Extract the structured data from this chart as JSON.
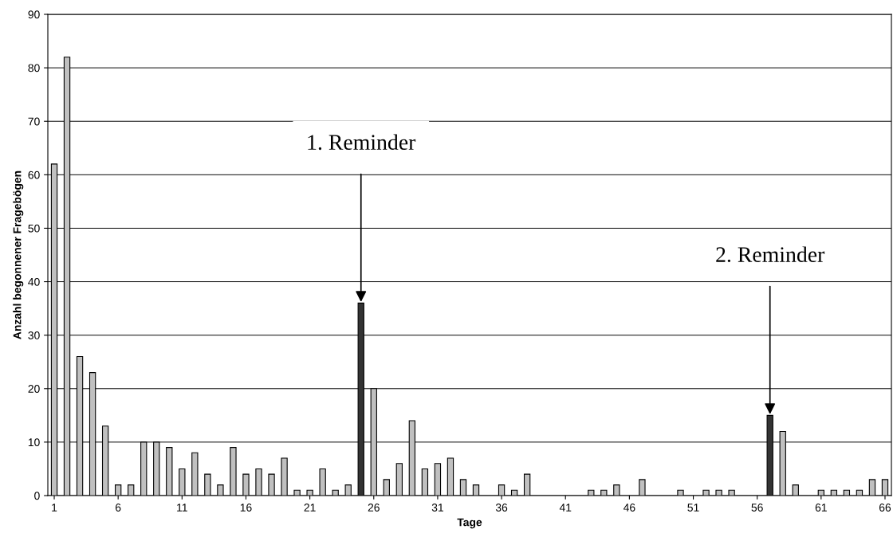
{
  "chart_data": {
    "type": "bar",
    "xlabel": "Tage",
    "ylabel": "Anzahl begonnener Fragebögen",
    "x": [
      1,
      2,
      3,
      4,
      5,
      6,
      7,
      8,
      9,
      10,
      11,
      12,
      13,
      14,
      15,
      16,
      17,
      18,
      19,
      20,
      21,
      22,
      23,
      24,
      25,
      26,
      27,
      28,
      29,
      30,
      31,
      32,
      33,
      34,
      35,
      36,
      37,
      38,
      39,
      40,
      41,
      42,
      43,
      44,
      45,
      46,
      47,
      48,
      49,
      50,
      51,
      52,
      53,
      54,
      55,
      56,
      57,
      58,
      59,
      60,
      61,
      62,
      63,
      64,
      65,
      66
    ],
    "values": [
      62,
      82,
      26,
      23,
      13,
      2,
      2,
      10,
      10,
      9,
      5,
      8,
      4,
      2,
      9,
      4,
      5,
      4,
      7,
      1,
      1,
      5,
      1,
      2,
      36,
      20,
      3,
      6,
      14,
      5,
      6,
      7,
      3,
      2,
      0,
      2,
      1,
      4,
      0,
      0,
      0,
      0,
      1,
      1,
      2,
      0,
      3,
      0,
      0,
      1,
      0,
      1,
      1,
      1,
      0,
      0,
      15,
      12,
      2,
      0,
      1,
      1,
      1,
      1,
      3,
      3
    ],
    "colors": [
      "#c0c0c0",
      "#c0c0c0",
      "#c0c0c0",
      "#c0c0c0",
      "#c0c0c0",
      "#c0c0c0",
      "#c0c0c0",
      "#c0c0c0",
      "#c0c0c0",
      "#c0c0c0",
      "#c0c0c0",
      "#c0c0c0",
      "#c0c0c0",
      "#c0c0c0",
      "#c0c0c0",
      "#c0c0c0",
      "#c0c0c0",
      "#c0c0c0",
      "#c0c0c0",
      "#c0c0c0",
      "#c0c0c0",
      "#c0c0c0",
      "#c0c0c0",
      "#c0c0c0",
      "#333333",
      "#c0c0c0",
      "#c0c0c0",
      "#c0c0c0",
      "#c0c0c0",
      "#c0c0c0",
      "#c0c0c0",
      "#c0c0c0",
      "#c0c0c0",
      "#c0c0c0",
      "#c0c0c0",
      "#c0c0c0",
      "#c0c0c0",
      "#c0c0c0",
      "#c0c0c0",
      "#c0c0c0",
      "#c0c0c0",
      "#c0c0c0",
      "#c0c0c0",
      "#c0c0c0",
      "#c0c0c0",
      "#c0c0c0",
      "#c0c0c0",
      "#c0c0c0",
      "#c0c0c0",
      "#c0c0c0",
      "#c0c0c0",
      "#c0c0c0",
      "#c0c0c0",
      "#c0c0c0",
      "#c0c0c0",
      "#c0c0c0",
      "#333333",
      "#c0c0c0",
      "#c0c0c0",
      "#c0c0c0",
      "#c0c0c0",
      "#c0c0c0",
      "#c0c0c0",
      "#c0c0c0",
      "#c0c0c0",
      "#c0c0c0"
    ],
    "xlim": [
      0.5,
      66.5
    ],
    "xticks": [
      1,
      6,
      11,
      16,
      21,
      26,
      31,
      36,
      41,
      46,
      51,
      56,
      61,
      66
    ],
    "ylim": [
      0,
      90
    ],
    "yticks": [
      0,
      10,
      20,
      30,
      40,
      50,
      60,
      70,
      80,
      90
    ],
    "grid": "y",
    "annotations": [
      {
        "text": "1. Reminder",
        "x": 25,
        "y": 36
      },
      {
        "text": "2. Reminder",
        "x": 57,
        "y": 15
      }
    ]
  }
}
